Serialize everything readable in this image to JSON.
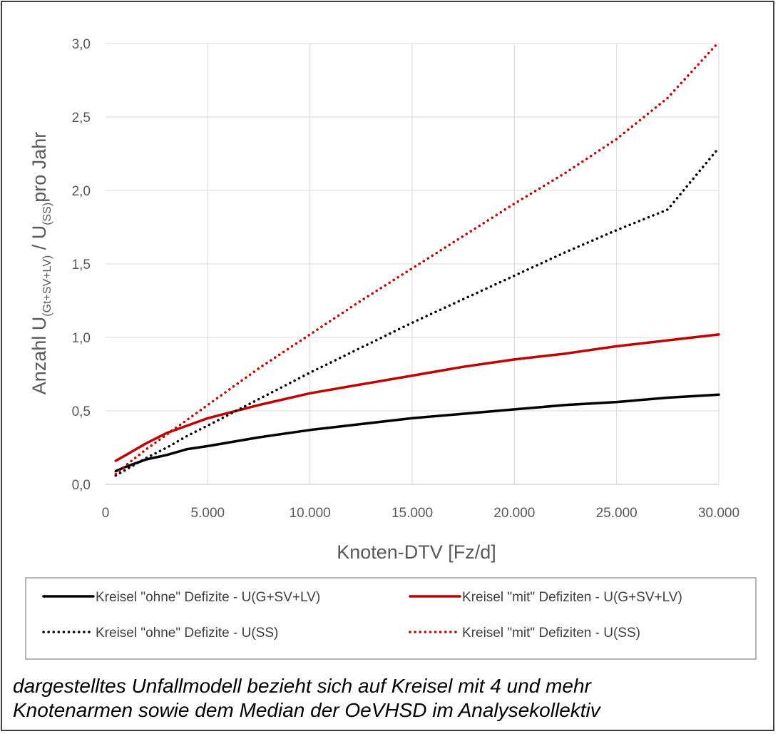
{
  "chart_data": {
    "type": "line",
    "title": "",
    "xlabel": "Knoten-DTV [Fz/d]",
    "ylabel": {
      "prefix": "Anzahl U",
      "sub1": "(Gt+SV+LV)",
      "mid": " / U",
      "sub2": "(SS)",
      "suffix": "pro Jahr"
    },
    "xlim": [
      0,
      30000
    ],
    "ylim": [
      0,
      3.0
    ],
    "x_ticks": [
      0,
      5000,
      10000,
      15000,
      20000,
      25000,
      30000
    ],
    "x_tick_labels": [
      "0",
      "5.000",
      "10.000",
      "15.000",
      "20.000",
      "25.000",
      "30.000"
    ],
    "y_ticks": [
      0,
      0.5,
      1.0,
      1.5,
      2.0,
      2.5,
      3.0
    ],
    "y_tick_labels": [
      "0,0",
      "0,5",
      "1,0",
      "1,5",
      "2,0",
      "2,5",
      "3,0"
    ],
    "grid": true,
    "legend_position": "bottom",
    "x": [
      500,
      1000,
      2000,
      3000,
      4000,
      5000,
      7500,
      10000,
      12500,
      15000,
      17500,
      20000,
      22500,
      25000,
      27500,
      30000
    ],
    "series": [
      {
        "name": "Kreisel \"ohne\" Defizite - U(G+SV+LV)",
        "color": "#000000",
        "style": "solid",
        "values": [
          0.09,
          0.12,
          0.17,
          0.2,
          0.24,
          0.26,
          0.32,
          0.37,
          0.41,
          0.45,
          0.48,
          0.51,
          0.54,
          0.56,
          0.59,
          0.61
        ]
      },
      {
        "name": "Kreisel \"mit\" Defiziten - U(G+SV+LV)",
        "color": "#c00000",
        "style": "solid",
        "values": [
          0.16,
          0.2,
          0.28,
          0.35,
          0.4,
          0.45,
          0.54,
          0.62,
          0.68,
          0.74,
          0.8,
          0.85,
          0.89,
          0.94,
          0.98,
          1.02
        ]
      },
      {
        "name": "Kreisel \"ohne\" Defizite - U(SS)",
        "color": "#000000",
        "style": "dotted",
        "values": [
          0.06,
          0.1,
          0.18,
          0.25,
          0.33,
          0.4,
          0.58,
          0.76,
          0.93,
          1.1,
          1.26,
          1.42,
          1.58,
          1.73,
          1.87,
          2.29
        ]
      },
      {
        "name": "Kreisel \"mit\" Defiziten - U(SS)",
        "color": "#c00000",
        "style": "dotted",
        "values": [
          0.07,
          0.13,
          0.24,
          0.34,
          0.44,
          0.54,
          0.79,
          1.02,
          1.25,
          1.47,
          1.69,
          1.91,
          2.12,
          2.35,
          2.63,
          3.01
        ]
      }
    ]
  },
  "caption": [
    "dargestelltes Unfallmodell bezieht sich auf Kreisel mit 4 und mehr",
    "Knotenarmen sowie dem Median der OeVHSD im Analysekollektiv"
  ]
}
